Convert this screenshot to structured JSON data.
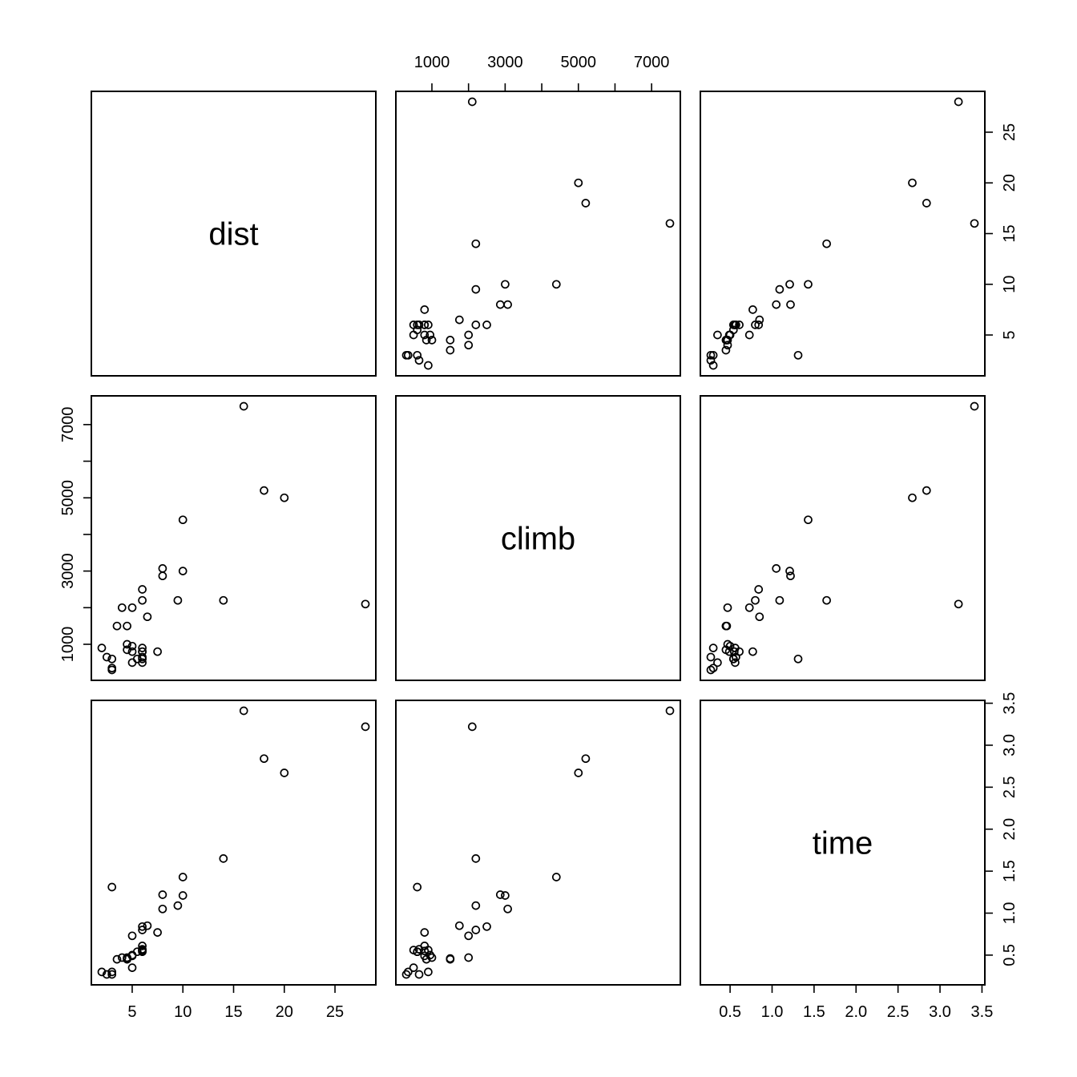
{
  "chart_data": {
    "type": "scatter",
    "title": "",
    "variables": [
      {
        "name": "dist",
        "range": [
          2,
          28
        ],
        "ticks": [
          5,
          10,
          15,
          20,
          25
        ],
        "tick_labels": [
          "5",
          "10",
          "15",
          "20",
          "25"
        ]
      },
      {
        "name": "climb",
        "range": [
          300,
          7500
        ],
        "ticks": [
          1000,
          2000,
          3000,
          4000,
          5000,
          6000,
          7000
        ],
        "tick_labels": [
          "1000",
          "",
          "3000",
          "",
          "5000",
          "",
          "7000"
        ]
      },
      {
        "name": "time",
        "range": [
          0.27,
          3.41
        ],
        "ticks": [
          0.5,
          1.0,
          1.5,
          2.0,
          2.5,
          3.0,
          3.5
        ],
        "tick_labels": [
          "0.5",
          "1.0",
          "1.5",
          "2.0",
          "2.5",
          "3.0",
          "3.5"
        ]
      }
    ],
    "observations": {
      "dist": [
        2.5,
        6,
        6,
        7.5,
        8,
        8,
        16,
        6,
        5,
        6,
        28,
        5,
        9.5,
        6,
        4.5,
        10,
        14,
        3,
        4.5,
        5.5,
        3,
        3.5,
        6,
        2,
        3,
        4,
        6,
        5,
        6.5,
        5,
        10,
        6,
        18,
        4.5,
        20
      ],
      "climb": [
        650,
        2500,
        900,
        800,
        3070,
        2866,
        7500,
        800,
        800,
        650,
        2100,
        2000,
        2200,
        500,
        1500,
        3000,
        2200,
        350,
        1000,
        600,
        300,
        1500,
        2200,
        900,
        600,
        2000,
        800,
        950,
        1750,
        500,
        4400,
        600,
        5200,
        850,
        5000
      ],
      "time": [
        0.27,
        0.84,
        0.56,
        0.77,
        1.05,
        1.22,
        3.41,
        0.61,
        0.49,
        0.57,
        3.22,
        0.73,
        1.09,
        0.56,
        0.46,
        1.21,
        1.65,
        0.3,
        0.47,
        0.54,
        0.27,
        0.45,
        0.8,
        0.3,
        1.31,
        0.47,
        0.55,
        0.5,
        0.85,
        0.35,
        1.43,
        0.54,
        2.84,
        0.45,
        2.67
      ]
    },
    "axis_layout": {
      "dist": "left-top",
      "climb": "top-left",
      "time": "bottom-right"
    },
    "grid": false,
    "legend": "none"
  }
}
